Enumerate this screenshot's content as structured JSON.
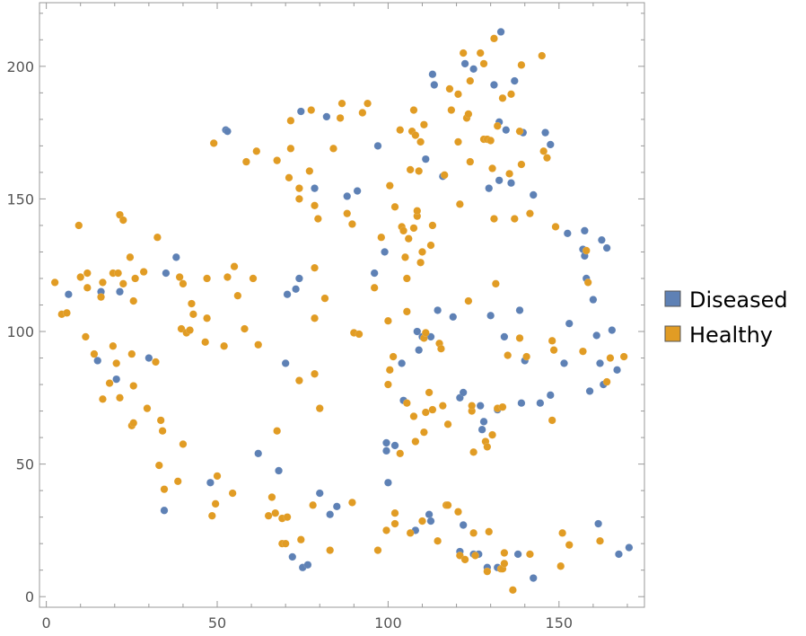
{
  "chart_data": {
    "type": "scatter",
    "title": "",
    "xlabel": "",
    "ylabel": "",
    "xlim": [
      -2,
      175
    ],
    "ylim": [
      -4,
      224
    ],
    "x_ticks": [
      0,
      50,
      100,
      150
    ],
    "y_ticks": [
      0,
      50,
      100,
      150,
      200
    ],
    "grid": false,
    "legend_position": "right",
    "series": [
      {
        "name": "Diseased",
        "color": "#5E81B5",
        "points": [
          [
            6.5,
            114
          ],
          [
            15,
            89
          ],
          [
            16,
            115
          ],
          [
            20.5,
            82
          ],
          [
            21.5,
            115
          ],
          [
            30,
            90
          ],
          [
            34.5,
            32.5
          ],
          [
            35,
            122
          ],
          [
            38,
            128
          ],
          [
            48,
            43
          ],
          [
            52.5,
            176
          ],
          [
            53,
            175.5
          ],
          [
            62,
            54
          ],
          [
            68,
            47.5
          ],
          [
            70,
            88
          ],
          [
            70.5,
            114
          ],
          [
            72,
            15
          ],
          [
            73,
            116
          ],
          [
            74,
            120
          ],
          [
            74.5,
            183
          ],
          [
            75,
            11
          ],
          [
            76.5,
            12
          ],
          [
            78.5,
            154
          ],
          [
            80,
            39
          ],
          [
            82,
            181
          ],
          [
            83,
            31
          ],
          [
            85,
            34
          ],
          [
            88,
            151
          ],
          [
            91,
            153
          ],
          [
            96,
            122
          ],
          [
            97,
            170
          ],
          [
            99,
            130
          ],
          [
            99.5,
            55
          ],
          [
            99.5,
            58
          ],
          [
            100,
            43
          ],
          [
            102,
            57
          ],
          [
            104,
            88
          ],
          [
            104.5,
            74
          ],
          [
            108,
            25
          ],
          [
            108.5,
            100
          ],
          [
            109,
            93
          ],
          [
            110,
            98
          ],
          [
            111,
            165
          ],
          [
            112,
            31
          ],
          [
            112.5,
            28.5
          ],
          [
            112.5,
            98
          ],
          [
            113,
            197
          ],
          [
            113.5,
            193
          ],
          [
            114.5,
            108
          ],
          [
            116,
            158.5
          ],
          [
            119,
            105.5
          ],
          [
            121,
            75
          ],
          [
            121,
            17
          ],
          [
            122,
            77
          ],
          [
            122,
            27
          ],
          [
            122.5,
            201
          ],
          [
            125,
            199
          ],
          [
            125,
            16
          ],
          [
            126.5,
            16
          ],
          [
            127,
            72
          ],
          [
            127.5,
            63
          ],
          [
            128,
            66
          ],
          [
            129,
            11
          ],
          [
            129.5,
            154
          ],
          [
            130,
            106
          ],
          [
            131,
            193
          ],
          [
            132,
            11
          ],
          [
            132,
            70.5
          ],
          [
            132.5,
            179
          ],
          [
            132.5,
            157
          ],
          [
            133,
            213
          ],
          [
            134,
            98
          ],
          [
            134.5,
            176
          ],
          [
            136,
            156
          ],
          [
            137,
            194.5
          ],
          [
            138,
            16
          ],
          [
            138.5,
            108
          ],
          [
            139,
            73
          ],
          [
            139.5,
            175
          ],
          [
            140,
            89
          ],
          [
            142.5,
            151.5
          ],
          [
            142.5,
            7
          ],
          [
            144.5,
            73
          ],
          [
            146,
            175
          ],
          [
            147.5,
            170.5
          ],
          [
            147.5,
            76
          ],
          [
            151.5,
            88
          ],
          [
            152.5,
            137
          ],
          [
            153,
            103
          ],
          [
            157,
            131
          ],
          [
            157.5,
            128.5
          ],
          [
            157.5,
            138
          ],
          [
            158,
            120
          ],
          [
            159,
            77.5
          ],
          [
            160,
            112
          ],
          [
            161,
            98.5
          ],
          [
            161.5,
            27.5
          ],
          [
            162,
            88
          ],
          [
            162.5,
            134.5
          ],
          [
            163,
            80
          ],
          [
            164,
            131.5
          ],
          [
            165.5,
            100.5
          ],
          [
            167,
            85.5
          ],
          [
            167.5,
            16
          ],
          [
            170.5,
            18.5
          ]
        ]
      },
      {
        "name": "Healthy",
        "color": "#E19C24",
        "points": [
          [
            2.5,
            118.5
          ],
          [
            4.5,
            106.5
          ],
          [
            6,
            107
          ],
          [
            9.5,
            140
          ],
          [
            10,
            120.5
          ],
          [
            11.5,
            98
          ],
          [
            12,
            122
          ],
          [
            12,
            116.5
          ],
          [
            14,
            91.5
          ],
          [
            16,
            113
          ],
          [
            16.5,
            74.5
          ],
          [
            16.5,
            118.5
          ],
          [
            18.5,
            80.5
          ],
          [
            19.5,
            94.5
          ],
          [
            19.5,
            122
          ],
          [
            20.5,
            88
          ],
          [
            21,
            122
          ],
          [
            21.5,
            144
          ],
          [
            21.5,
            75
          ],
          [
            22.5,
            142
          ],
          [
            22.5,
            118
          ],
          [
            24.5,
            128
          ],
          [
            25,
            91.5
          ],
          [
            25,
            64.5
          ],
          [
            25.5,
            65.5
          ],
          [
            25.5,
            111.5
          ],
          [
            25.5,
            79.5
          ],
          [
            26,
            120
          ],
          [
            28.5,
            122.5
          ],
          [
            29.5,
            71
          ],
          [
            32,
            88.5
          ],
          [
            32.5,
            135.5
          ],
          [
            33,
            49.5
          ],
          [
            33.5,
            66.5
          ],
          [
            34,
            62.5
          ],
          [
            34.5,
            40.5
          ],
          [
            38.5,
            43.5
          ],
          [
            39,
            120.5
          ],
          [
            39.5,
            101
          ],
          [
            40,
            57.5
          ],
          [
            40,
            118
          ],
          [
            41,
            99.5
          ],
          [
            42,
            100.5
          ],
          [
            42.5,
            110.5
          ],
          [
            43,
            106.5
          ],
          [
            46.5,
            96
          ],
          [
            47,
            120
          ],
          [
            47,
            105
          ],
          [
            48.5,
            30.5
          ],
          [
            49,
            171
          ],
          [
            49.5,
            35
          ],
          [
            50,
            45.5
          ],
          [
            52,
            94.5
          ],
          [
            53,
            120.5
          ],
          [
            54.5,
            39
          ],
          [
            55,
            124.5
          ],
          [
            56,
            113.5
          ],
          [
            58,
            101
          ],
          [
            58.5,
            164
          ],
          [
            60.5,
            120
          ],
          [
            61.5,
            168
          ],
          [
            62,
            95
          ],
          [
            65,
            30.5
          ],
          [
            66,
            37.5
          ],
          [
            67,
            31.5
          ],
          [
            67.5,
            164.5
          ],
          [
            67.5,
            62.5
          ],
          [
            69,
            29.5
          ],
          [
            69,
            20
          ],
          [
            70,
            20
          ],
          [
            70.5,
            30
          ],
          [
            71,
            158
          ],
          [
            71.5,
            169
          ],
          [
            71.5,
            179.5
          ],
          [
            74,
            150
          ],
          [
            74,
            154
          ],
          [
            74,
            81.5
          ],
          [
            74.5,
            21.5
          ],
          [
            77,
            160.5
          ],
          [
            77.5,
            183.5
          ],
          [
            78,
            34.5
          ],
          [
            78.5,
            105
          ],
          [
            78.5,
            124
          ],
          [
            78.5,
            84
          ],
          [
            78.5,
            147.5
          ],
          [
            79.5,
            142.5
          ],
          [
            80,
            71
          ],
          [
            81.5,
            112.5
          ],
          [
            83,
            17.5
          ],
          [
            84,
            169
          ],
          [
            86,
            180.5
          ],
          [
            86.5,
            186
          ],
          [
            88,
            144.5
          ],
          [
            89.5,
            140.5
          ],
          [
            89.5,
            35.5
          ],
          [
            90,
            99.5
          ],
          [
            91.5,
            99
          ],
          [
            92.5,
            182.5
          ],
          [
            94,
            186
          ],
          [
            96,
            116.5
          ],
          [
            97,
            17.5
          ],
          [
            98,
            135.5
          ],
          [
            99.5,
            25
          ],
          [
            100,
            104
          ],
          [
            100,
            80
          ],
          [
            100.5,
            85.5
          ],
          [
            100.5,
            155
          ],
          [
            101.5,
            90.5
          ],
          [
            102,
            147
          ],
          [
            102,
            27.5
          ],
          [
            102,
            31.5
          ],
          [
            103.5,
            54
          ],
          [
            103.5,
            176
          ],
          [
            104,
            139.5
          ],
          [
            104.5,
            138
          ],
          [
            105,
            128
          ],
          [
            105.5,
            107.5
          ],
          [
            105.5,
            120
          ],
          [
            105.5,
            73
          ],
          [
            106,
            135
          ],
          [
            106.5,
            24
          ],
          [
            106.5,
            161
          ],
          [
            107,
            175.5
          ],
          [
            107.5,
            139
          ],
          [
            107.5,
            68
          ],
          [
            107.5,
            183.5
          ],
          [
            108,
            174
          ],
          [
            108,
            58.5
          ],
          [
            108.5,
            143.5
          ],
          [
            108.5,
            145.5
          ],
          [
            109,
            160.5
          ],
          [
            109.5,
            171.5
          ],
          [
            109.5,
            126
          ],
          [
            110,
            130
          ],
          [
            110,
            28.5
          ],
          [
            110.5,
            178
          ],
          [
            110.5,
            62
          ],
          [
            110.5,
            97.5
          ],
          [
            111,
            69.5
          ],
          [
            111,
            99.5
          ],
          [
            112,
            77
          ],
          [
            112.5,
            132.5
          ],
          [
            113,
            140
          ],
          [
            113,
            70.5
          ],
          [
            114.5,
            21
          ],
          [
            115,
            95.5
          ],
          [
            115.5,
            93.5
          ],
          [
            116,
            72
          ],
          [
            116.5,
            159
          ],
          [
            117,
            34.5
          ],
          [
            117.5,
            34.5
          ],
          [
            117.5,
            65
          ],
          [
            118,
            191.5
          ],
          [
            118.5,
            183.5
          ],
          [
            120.5,
            189.5
          ],
          [
            120.5,
            171.5
          ],
          [
            120.5,
            32
          ],
          [
            121,
            15.5
          ],
          [
            121,
            148
          ],
          [
            122,
            205
          ],
          [
            122.5,
            14
          ],
          [
            123,
            180.5
          ],
          [
            123.5,
            111.5
          ],
          [
            123.5,
            182
          ],
          [
            124,
            164
          ],
          [
            124,
            194.5
          ],
          [
            124.5,
            70
          ],
          [
            124.5,
            72
          ],
          [
            125,
            54.5
          ],
          [
            125,
            24
          ],
          [
            125.5,
            15.5
          ],
          [
            127,
            205
          ],
          [
            128,
            172.5
          ],
          [
            128,
            201
          ],
          [
            128.5,
            58.5
          ],
          [
            129,
            172.5
          ],
          [
            129,
            56.5
          ],
          [
            129,
            9.5
          ],
          [
            129.5,
            24.5
          ],
          [
            130,
            172
          ],
          [
            130.5,
            61
          ],
          [
            130.5,
            161.5
          ],
          [
            131,
            210.5
          ],
          [
            131,
            142.5
          ],
          [
            131.5,
            118
          ],
          [
            132,
            177.5
          ],
          [
            132,
            71
          ],
          [
            133,
            10.5
          ],
          [
            133.5,
            10.5
          ],
          [
            133.5,
            188
          ],
          [
            133.5,
            71.5
          ],
          [
            134,
            12.5
          ],
          [
            134,
            16.5
          ],
          [
            135,
            91
          ],
          [
            135.5,
            159.5
          ],
          [
            136,
            189.5
          ],
          [
            136.5,
            2.5
          ],
          [
            137,
            142.5
          ],
          [
            138.5,
            175.5
          ],
          [
            138.5,
            97.5
          ],
          [
            139,
            163
          ],
          [
            139,
            200.5
          ],
          [
            140.5,
            90.5
          ],
          [
            141.5,
            144.5
          ],
          [
            141.5,
            16
          ],
          [
            145,
            204
          ],
          [
            145.5,
            168
          ],
          [
            146.5,
            165.5
          ],
          [
            148,
            66.5
          ],
          [
            148,
            96.5
          ],
          [
            148.5,
            93
          ],
          [
            149,
            139.5
          ],
          [
            150.5,
            11.5
          ],
          [
            151,
            24
          ],
          [
            153,
            19.5
          ],
          [
            157,
            92.5
          ],
          [
            158,
            130.5
          ],
          [
            158.5,
            118.5
          ],
          [
            162,
            21
          ],
          [
            164,
            81
          ],
          [
            165,
            90
          ],
          [
            169,
            90.5
          ]
        ]
      }
    ]
  }
}
